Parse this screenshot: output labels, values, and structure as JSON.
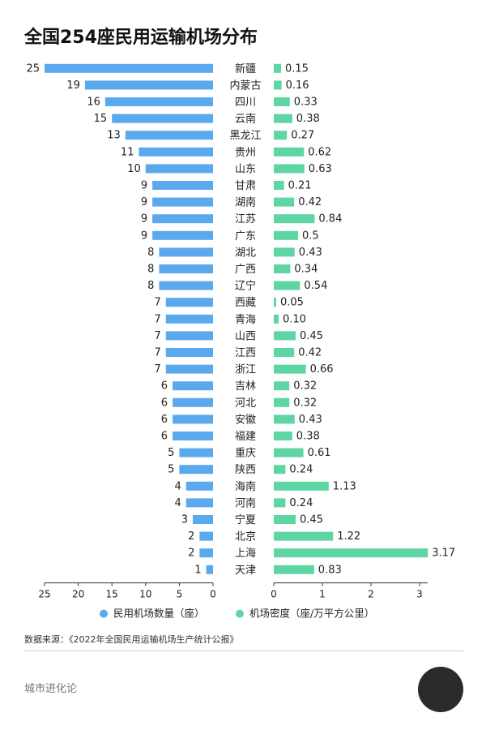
{
  "title": "全国254座民用运输机场分布",
  "source": "数据来源：《2022年全国民用运输机场生产统计公报》",
  "brand": "城市进化论",
  "colors": {
    "count_bar": "#5aa9ec",
    "density_bar": "#5dd6a4",
    "text": "#222222",
    "axis": "#333333"
  },
  "chart_data": {
    "type": "bar",
    "orientation": "horizontal",
    "categories": [
      "新疆",
      "内蒙古",
      "四川",
      "云南",
      "黑龙江",
      "贵州",
      "山东",
      "甘肃",
      "湖南",
      "江苏",
      "广东",
      "湖北",
      "广西",
      "辽宁",
      "西藏",
      "青海",
      "山西",
      "江西",
      "浙江",
      "吉林",
      "河北",
      "安徽",
      "福建",
      "重庆",
      "陕西",
      "海南",
      "河南",
      "宁夏",
      "北京",
      "上海",
      "天津"
    ],
    "series": [
      {
        "name": "民用机场数量（座）",
        "values": [
          25,
          19,
          16,
          15,
          13,
          11,
          10,
          9,
          9,
          9,
          9,
          8,
          8,
          8,
          7,
          7,
          7,
          7,
          7,
          6,
          6,
          6,
          6,
          5,
          5,
          4,
          4,
          3,
          2,
          2,
          1
        ],
        "labels": [
          "25",
          "19",
          "16",
          "15",
          "13",
          "11",
          "10",
          "9",
          "9",
          "9",
          "9",
          "8",
          "8",
          "8",
          "7",
          "7",
          "7",
          "7",
          "7",
          "6",
          "6",
          "6",
          "6",
          "5",
          "5",
          "4",
          "4",
          "3",
          "2",
          "2",
          "1"
        ],
        "xlim": [
          0,
          25
        ],
        "ticks": [
          "25",
          "20",
          "15",
          "10",
          "5",
          "0"
        ],
        "tick_values": [
          25,
          20,
          15,
          10,
          5,
          0
        ]
      },
      {
        "name": "机场密度（座/万平方公里）",
        "values": [
          0.15,
          0.16,
          0.33,
          0.38,
          0.27,
          0.62,
          0.63,
          0.21,
          0.42,
          0.84,
          0.5,
          0.43,
          0.34,
          0.54,
          0.05,
          0.1,
          0.45,
          0.42,
          0.66,
          0.32,
          0.32,
          0.43,
          0.38,
          0.61,
          0.24,
          1.13,
          0.24,
          0.45,
          1.22,
          3.17,
          0.83
        ],
        "labels": [
          "0.15",
          "0.16",
          "0.33",
          "0.38",
          "0.27",
          "0.62",
          "0.63",
          "0.21",
          "0.42",
          "0.84",
          "0.5",
          "0.43",
          "0.34",
          "0.54",
          "0.05",
          "0.10",
          "0.45",
          "0.42",
          "0.66",
          "0.32",
          "0.32",
          "0.43",
          "0.38",
          "0.61",
          "0.24",
          "1.13",
          "0.24",
          "0.45",
          "1.22",
          "3.17",
          "0.83"
        ],
        "xlim": [
          0,
          3.17
        ],
        "ticks": [
          "0",
          "1",
          "2",
          "3"
        ],
        "tick_values": [
          0,
          1,
          2,
          3
        ]
      }
    ],
    "legend_position": "bottom",
    "grid": false
  }
}
